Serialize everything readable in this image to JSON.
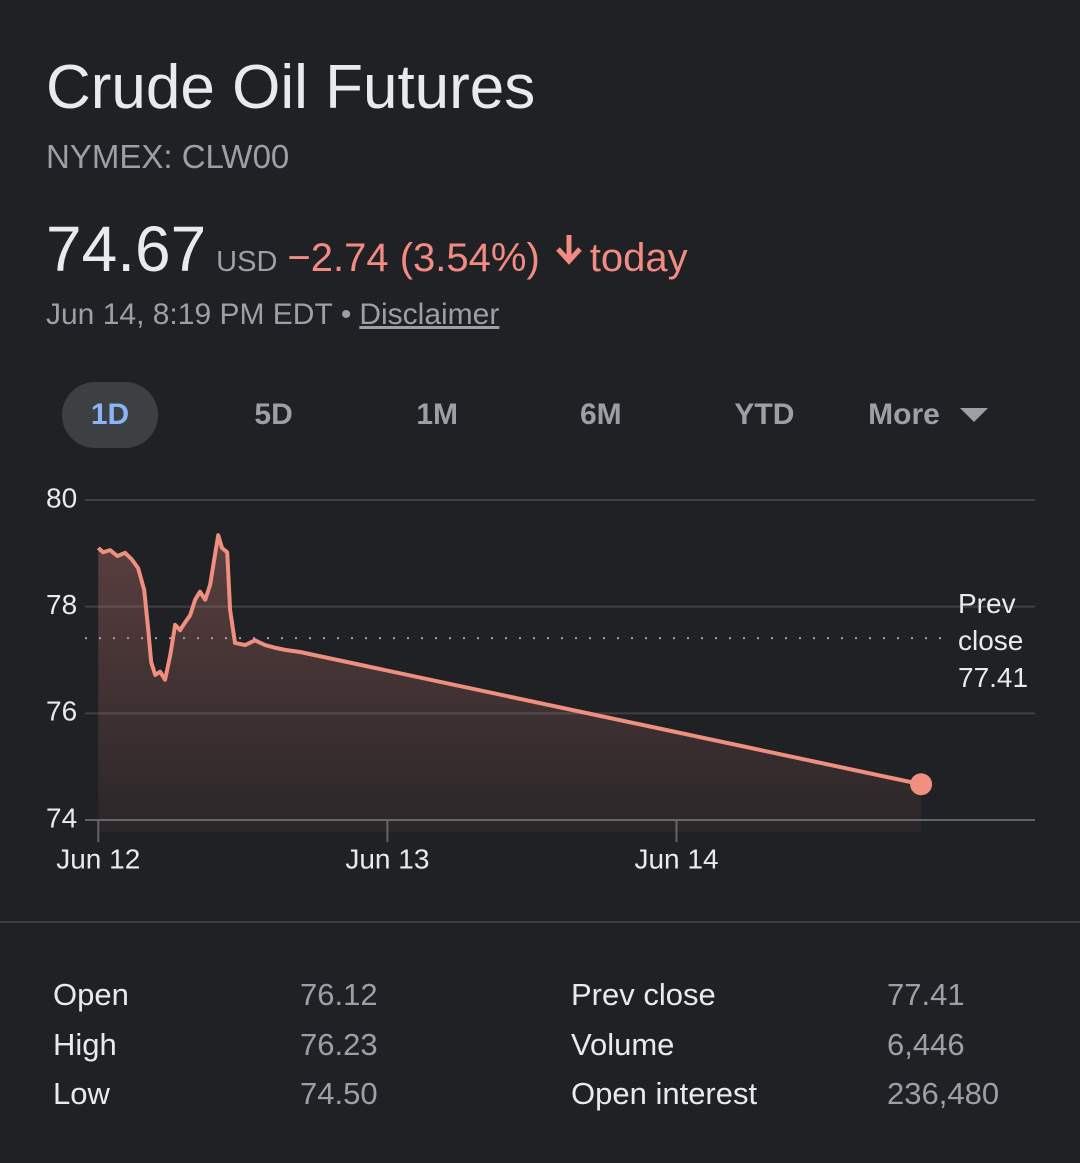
{
  "header": {
    "title": "Crude Oil Futures",
    "exchange_symbol": "NYMEX: CLW00",
    "price": "74.67",
    "currency": "USD",
    "change": "−2.74 (3.54%)",
    "period": "today",
    "timestamp": "Jun 14, 8:19 PM EDT",
    "separator": "•",
    "disclaimer": "Disclaimer"
  },
  "tabs": {
    "items": [
      "1D",
      "5D",
      "1M",
      "6M",
      "YTD",
      "More"
    ],
    "selected": 0
  },
  "chart_data": {
    "type": "line",
    "color": "#ee8f80",
    "x": [
      0,
      0.017,
      0.041,
      0.066,
      0.093,
      0.117,
      0.138,
      0.159,
      0.173,
      0.183,
      0.197,
      0.214,
      0.231,
      0.249,
      0.266,
      0.283,
      0.301,
      0.318,
      0.335,
      0.352,
      0.37,
      0.387,
      0.401,
      0.415,
      0.428,
      0.446,
      0.456,
      0.473,
      0.508,
      0.542,
      0.577,
      0.611,
      0.646,
      0.698,
      2.846
    ],
    "values": [
      79.1,
      79.02,
      79.06,
      78.95,
      79.01,
      78.88,
      78.72,
      78.31,
      77.56,
      76.96,
      76.72,
      76.78,
      76.63,
      77.09,
      77.66,
      77.56,
      77.71,
      77.84,
      78.13,
      78.28,
      78.13,
      78.41,
      78.88,
      79.34,
      79.1,
      79.02,
      77.94,
      77.32,
      77.28,
      77.37,
      77.28,
      77.23,
      77.19,
      77.15,
      74.67
    ],
    "xlim": [
      -0.16,
      3.24
    ],
    "xticks": [
      {
        "value": 0,
        "label": "Jun 12"
      },
      {
        "value": 1,
        "label": "Jun 13"
      },
      {
        "value": 2,
        "label": "Jun 14"
      }
    ],
    "ylim": [
      74,
      80
    ],
    "yticks": [
      74,
      76,
      78,
      80
    ],
    "grid": true,
    "reference_line": {
      "label": "Prev close",
      "value": 77.41
    }
  },
  "stats": {
    "left": [
      [
        "Open",
        "76.12"
      ],
      [
        "High",
        "76.23"
      ],
      [
        "Low",
        "74.50"
      ]
    ],
    "right": [
      [
        "Prev close",
        "77.41"
      ],
      [
        "Volume",
        "6,446"
      ],
      [
        "Open interest",
        "236,480"
      ]
    ]
  }
}
